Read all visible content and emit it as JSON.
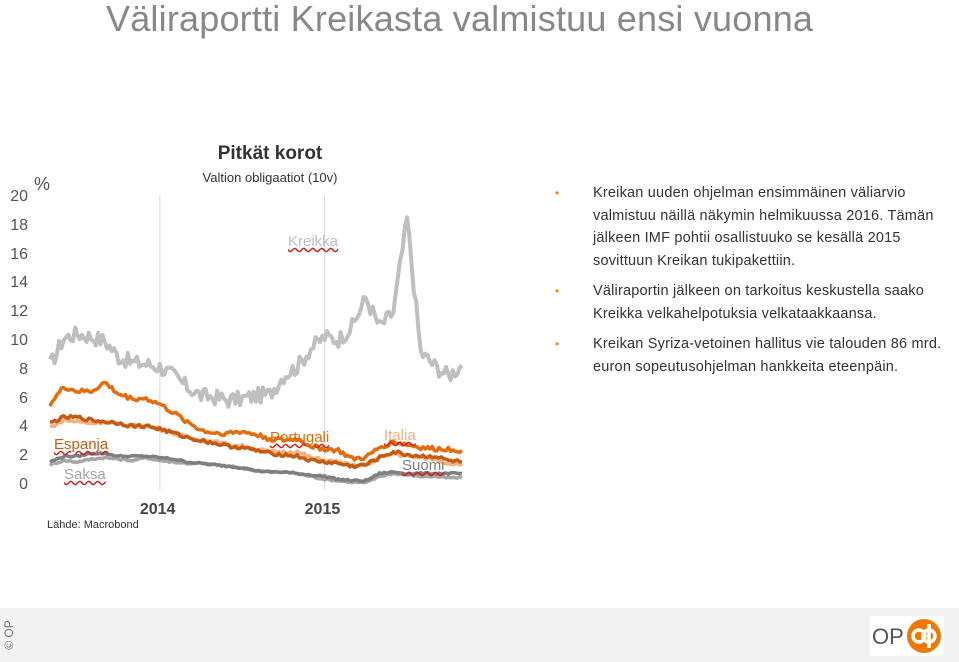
{
  "slide": {
    "title": "Väliraportti Kreikasta valmistuu ensi vuonna",
    "source": "Lähde: Macrobond",
    "copyright": "© OP",
    "logo_text": "OP"
  },
  "bullets": [
    "Kreikan uuden ohjelman ensimmäinen väliarvio valmistuu näillä näkymin helmikuussa 2016. Tämän jälkeen IMF pohtii osallistuuko se kesällä 2015 sovittuun Kreikan tukipakettiin.",
    "Väliraportin jälkeen on tarkoitus keskustella saako Kreikka velkahelpotuksia velkataakkaansa.",
    "Kreikan Syriza-vetoinen hallitus vie talouden 86 mrd. euron sopeutusohjelman hankkeita eteenpäin."
  ],
  "colors": {
    "greece": "#bfbfbf",
    "spain": "#c55a11",
    "portugal": "#e46c0a",
    "italy": "#f4b183",
    "finland": "#7f7f7f",
    "germany": "#a6a6a6",
    "bullet": "#f08a00",
    "title": "#888888"
  },
  "chart_data": {
    "type": "line",
    "title": "Pitkät korot",
    "subtitle": "Valtion obligaatiot (10v)",
    "ylabel": "%",
    "ylim": [
      0,
      20
    ],
    "yticks": [
      "0",
      "2",
      "4",
      "6",
      "8",
      "10",
      "12",
      "14",
      "16",
      "18",
      "20"
    ],
    "xticks": [
      "2014",
      "2015"
    ],
    "grid": false,
    "x": [
      "2013-05",
      "2013-06",
      "2013-07",
      "2013-08",
      "2013-09",
      "2013-10",
      "2013-11",
      "2013-12",
      "2014-01",
      "2014-02",
      "2014-03",
      "2014-04",
      "2014-05",
      "2014-06",
      "2014-07",
      "2014-08",
      "2014-09",
      "2014-10",
      "2014-11",
      "2014-12",
      "2015-01",
      "2015-02",
      "2015-03",
      "2015-04",
      "2015-05",
      "2015-06",
      "2015-07",
      "2015-08",
      "2015-09",
      "2015-10",
      "2015-11"
    ],
    "series": [
      {
        "name": "Kreikka",
        "color_key": "greece",
        "values": [
          8.3,
          10.2,
          10.5,
          10.3,
          10.0,
          8.9,
          8.5,
          8.4,
          8.2,
          7.6,
          6.8,
          6.2,
          6.1,
          5.9,
          6.0,
          6.2,
          6.3,
          7.6,
          8.2,
          9.5,
          10.3,
          10.1,
          11.0,
          13.0,
          11.0,
          12.0,
          18.5,
          9.2,
          8.3,
          7.6,
          8.3
        ]
      },
      {
        "name": "Espanja",
        "color_key": "spain",
        "values": [
          4.3,
          4.7,
          4.7,
          4.5,
          4.4,
          4.3,
          4.1,
          4.1,
          3.9,
          3.6,
          3.3,
          3.1,
          2.9,
          2.7,
          2.6,
          2.4,
          2.2,
          2.1,
          2.0,
          1.7,
          1.6,
          1.5,
          1.3,
          1.4,
          1.9,
          2.3,
          2.1,
          2.0,
          2.0,
          1.7,
          1.6
        ]
      },
      {
        "name": "Portugali",
        "color_key": "portugal",
        "values": [
          5.6,
          6.8,
          6.5,
          6.5,
          7.1,
          6.3,
          6.0,
          6.0,
          5.6,
          5.0,
          4.4,
          3.8,
          3.6,
          3.6,
          3.7,
          3.5,
          3.2,
          3.1,
          3.2,
          2.7,
          2.5,
          2.4,
          1.8,
          1.9,
          2.6,
          3.0,
          2.8,
          2.6,
          2.5,
          2.5,
          2.4
        ]
      },
      {
        "name": "Italia",
        "color_key": "italy",
        "values": [
          4.0,
          4.5,
          4.4,
          4.3,
          4.4,
          4.2,
          4.1,
          4.1,
          3.9,
          3.6,
          3.3,
          3.1,
          3.0,
          2.8,
          2.7,
          2.5,
          2.3,
          2.3,
          2.3,
          1.9,
          1.7,
          1.6,
          1.3,
          1.4,
          1.9,
          2.2,
          2.0,
          1.9,
          1.8,
          1.5,
          1.5
        ]
      },
      {
        "name": "Suomi",
        "color_key": "finland",
        "values": [
          1.6,
          2.0,
          2.0,
          2.2,
          2.2,
          2.0,
          2.0,
          2.0,
          1.9,
          1.8,
          1.6,
          1.5,
          1.4,
          1.3,
          1.2,
          1.0,
          0.9,
          0.9,
          0.8,
          0.7,
          0.6,
          0.4,
          0.3,
          0.3,
          0.8,
          0.9,
          0.8,
          0.8,
          0.8,
          0.8,
          0.8
        ]
      },
      {
        "name": "Saksa",
        "color_key": "germany",
        "values": [
          1.4,
          1.7,
          1.6,
          1.8,
          1.9,
          1.8,
          1.7,
          1.9,
          1.7,
          1.6,
          1.5,
          1.5,
          1.4,
          1.3,
          1.2,
          1.0,
          0.9,
          0.9,
          0.8,
          0.6,
          0.4,
          0.3,
          0.2,
          0.15,
          0.6,
          0.8,
          0.7,
          0.6,
          0.6,
          0.5,
          0.5
        ]
      }
    ]
  }
}
